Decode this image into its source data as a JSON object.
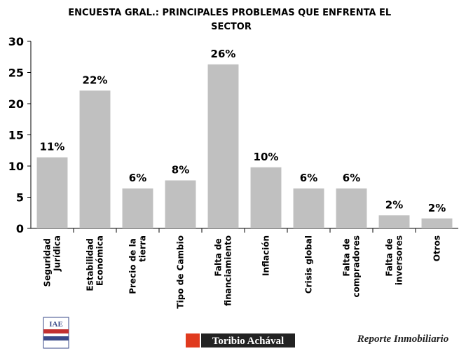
{
  "chart_data": {
    "type": "bar",
    "title": "ENCUESTA GRAL.: PRINCIPALES PROBLEMAS QUE ENFRENTA EL SECTOR",
    "categories": [
      "Seguridad Jurídica",
      "Estabilidad Económica",
      "Precio de la tierra",
      "Tipo de Cambio",
      "Falta de financiamiento",
      "Inflación",
      "Crisis global",
      "Falta de compradores",
      "Falta de inversores",
      "Otros"
    ],
    "values": [
      11.4,
      22.1,
      6.4,
      7.7,
      26.3,
      9.8,
      6.4,
      6.4,
      2.1,
      1.6
    ],
    "value_labels": [
      "11%",
      "22%",
      "6%",
      "8%",
      "26%",
      "10%",
      "6%",
      "6%",
      "2%",
      "2%"
    ],
    "color": "#c0c0c0",
    "ylim": [
      0,
      30
    ],
    "yticks": [
      0,
      5,
      10,
      15,
      20,
      25,
      30
    ],
    "grid": false
  },
  "logos": [
    "IAE",
    "Toribio Achával",
    "Reporte Inmobiliario"
  ]
}
